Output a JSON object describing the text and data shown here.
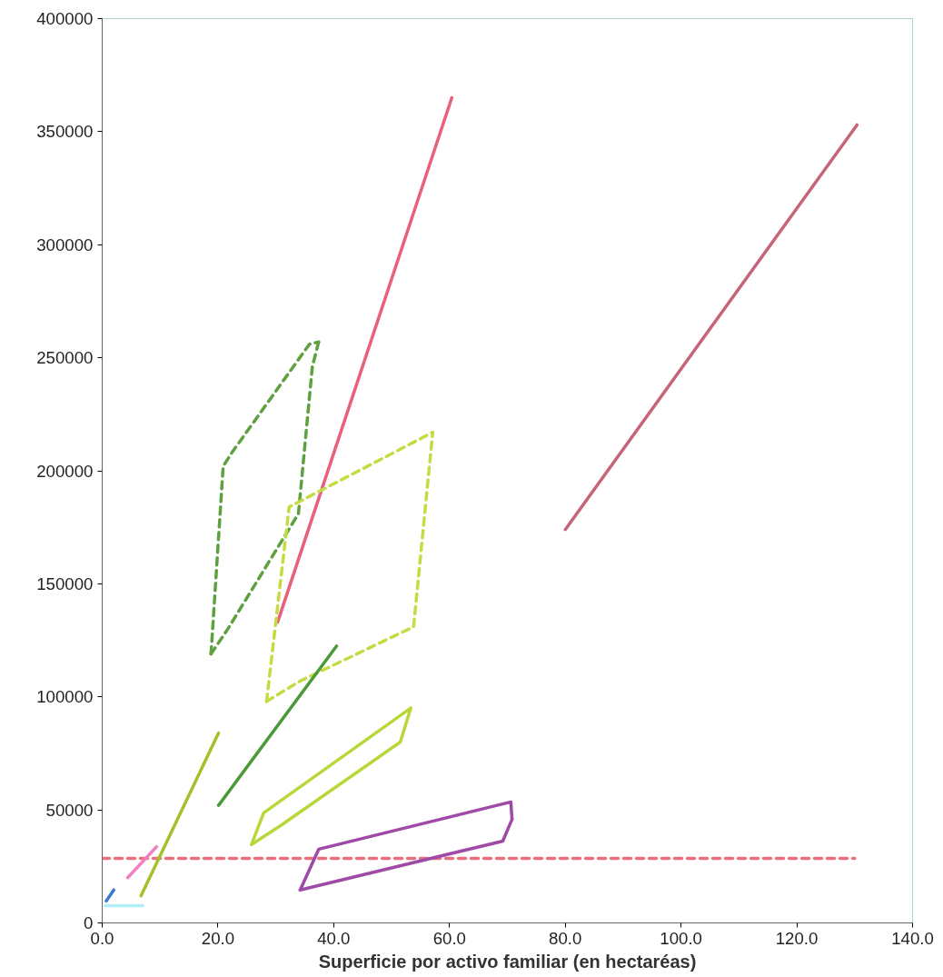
{
  "chart_data": {
    "type": "line",
    "xlabel": "Superficie por activo familiar (en hectaréas)",
    "xlim": [
      0,
      140
    ],
    "ylim": [
      0,
      400000
    ],
    "xticks": [
      {
        "value": 0,
        "label": "0.0"
      },
      {
        "value": 20,
        "label": "20.0"
      },
      {
        "value": 40,
        "label": "40.0"
      },
      {
        "value": 60,
        "label": "60.0"
      },
      {
        "value": 80,
        "label": "80.0"
      },
      {
        "value": 100,
        "label": "100.0"
      },
      {
        "value": 120,
        "label": "120.0"
      },
      {
        "value": 140,
        "label": "140.0"
      }
    ],
    "yticks": [
      0,
      50000,
      100000,
      150000,
      200000,
      250000,
      300000,
      350000,
      400000
    ],
    "grid": false,
    "series": [
      {
        "color": "#b0eef6",
        "x": [
          0.5,
          7
        ],
        "values": [
          7600,
          7600
        ]
      },
      {
        "color": "#e8707e",
        "line_style": "dashed",
        "x": [
          0,
          130
        ],
        "values": [
          28500,
          28500
        ]
      },
      {
        "color": "#e8607c",
        "x": [
          30.3,
          60.4
        ],
        "values": [
          133000,
          365000
        ]
      },
      {
        "color": "#c8647a",
        "x": [
          80.0,
          130.4
        ],
        "values": [
          174000,
          353000
        ]
      },
      {
        "color": "#5fa040",
        "line_style": "dashed",
        "x": [
          18.8,
          20.9,
          22.4,
          35.8,
          37.4
        ],
        "values": [
          119000,
          202000,
          208000,
          256000,
          257000
        ]
      },
      {
        "color": "#5fa040",
        "line_style": "dashed",
        "x": [
          18.8,
          21.7,
          33.9,
          36.3,
          37.4
        ],
        "values": [
          119000,
          130000,
          181000,
          246000,
          257000
        ]
      },
      {
        "color": "#c4dc44",
        "line_style": "dashed",
        "x": [
          28.4,
          32.3,
          57.1
        ],
        "values": [
          98000,
          184000,
          217000
        ]
      },
      {
        "color": "#c4dc44",
        "line_style": "dashed",
        "x": [
          28.4,
          34.2,
          53.8,
          57.1
        ],
        "values": [
          98000,
          107000,
          131000,
          217000
        ]
      },
      {
        "color": "#a4c02a",
        "x": [
          6.7,
          20.1
        ],
        "values": [
          12000,
          84000
        ]
      },
      {
        "color": "#4a9a3a",
        "x": [
          20.1,
          40.5
        ],
        "values": [
          52000,
          122500
        ]
      },
      {
        "color": "#b8d83a",
        "x": [
          25.8,
          27.9,
          53.3
        ],
        "values": [
          34700,
          48700,
          95000
        ]
      },
      {
        "color": "#b8d83a",
        "x": [
          25.8,
          30.8,
          51.5,
          53.3
        ],
        "values": [
          34700,
          43000,
          80000,
          95000
        ]
      },
      {
        "color": "#a04aa8",
        "x": [
          34.2,
          37.4,
          70.6,
          70.8
        ],
        "values": [
          14600,
          32600,
          53500,
          45800
        ]
      },
      {
        "color": "#a04aa8",
        "x": [
          34.2,
          69.2,
          70.8
        ],
        "values": [
          14600,
          36200,
          45800
        ]
      },
      {
        "color": "#f080c0",
        "x": [
          4.4,
          9.4
        ],
        "values": [
          20000,
          33700
        ]
      },
      {
        "color": "#3a7ad0",
        "x": [
          0.7,
          2.0
        ],
        "values": [
          9700,
          14600
        ]
      }
    ]
  }
}
